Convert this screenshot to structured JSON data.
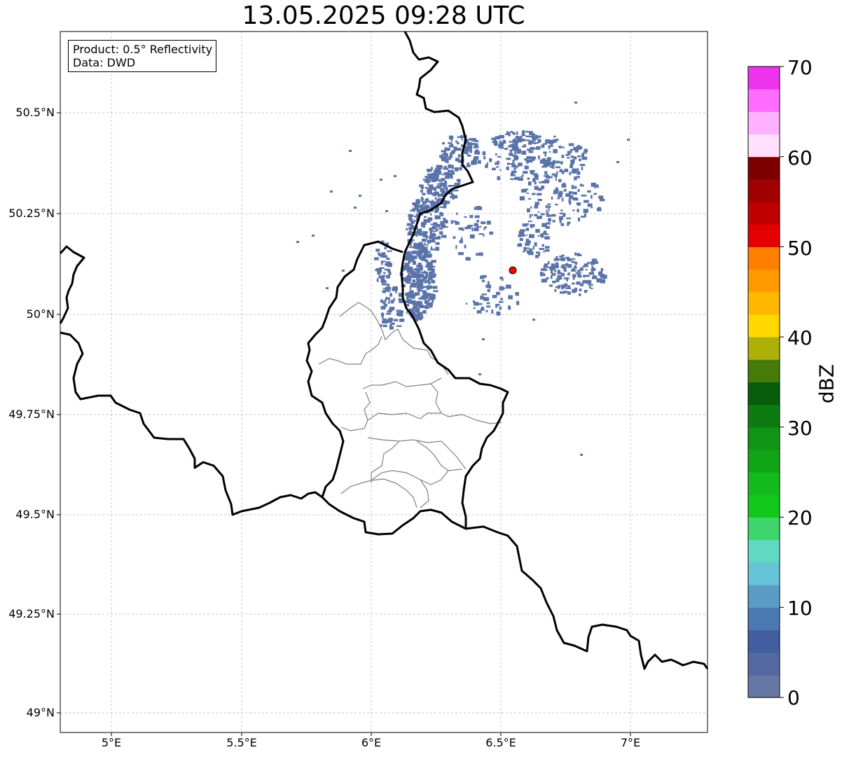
{
  "title": "13.05.2025 09:28 UTC",
  "info_box": {
    "product": "Product: 0.5° Reflectivity",
    "data_source": "Data: DWD"
  },
  "map": {
    "lat_labels": [
      "50.5°N",
      "50.25°N",
      "50°N",
      "49.75°N",
      "49.5°N",
      "49.25°N",
      "49°N"
    ],
    "lon_labels": [
      "5°E",
      "5.5°E",
      "6°E",
      "6.5°E",
      "7°E"
    ],
    "extent": {
      "lon_min": 4.8,
      "lon_max": 7.3,
      "lat_min": 48.95,
      "lat_max": 50.7
    },
    "gridlines": true,
    "radar_site": {
      "lon": 6.55,
      "lat": 50.11,
      "marker_color": "#ff0000"
    },
    "echo_color": "#5a73a8",
    "border_color": "#000000",
    "district_border_color": "#808080"
  },
  "colorbar": {
    "label": "dBZ",
    "tick_labels": [
      "0",
      "10",
      "20",
      "30",
      "40",
      "50",
      "60",
      "70"
    ],
    "min": 0,
    "max": 70,
    "step": 2.5,
    "colors": [
      "#6677a6",
      "#5468a2",
      "#425ea1",
      "#4b7ab3",
      "#5c9bc6",
      "#66c3d8",
      "#61d8c2",
      "#3ed66c",
      "#12c81b",
      "#12bb1b",
      "#10a517",
      "#0f9516",
      "#0c7b11",
      "#095c0c",
      "#477b09",
      "#adb006",
      "#ffd900",
      "#ffb800",
      "#ff9900",
      "#ff7f00",
      "#e50000",
      "#c00000",
      "#a00000",
      "#7d0000",
      "#ffe0ff",
      "#ffb0ff",
      "#ff6cff",
      "#ee33ee"
    ]
  }
}
